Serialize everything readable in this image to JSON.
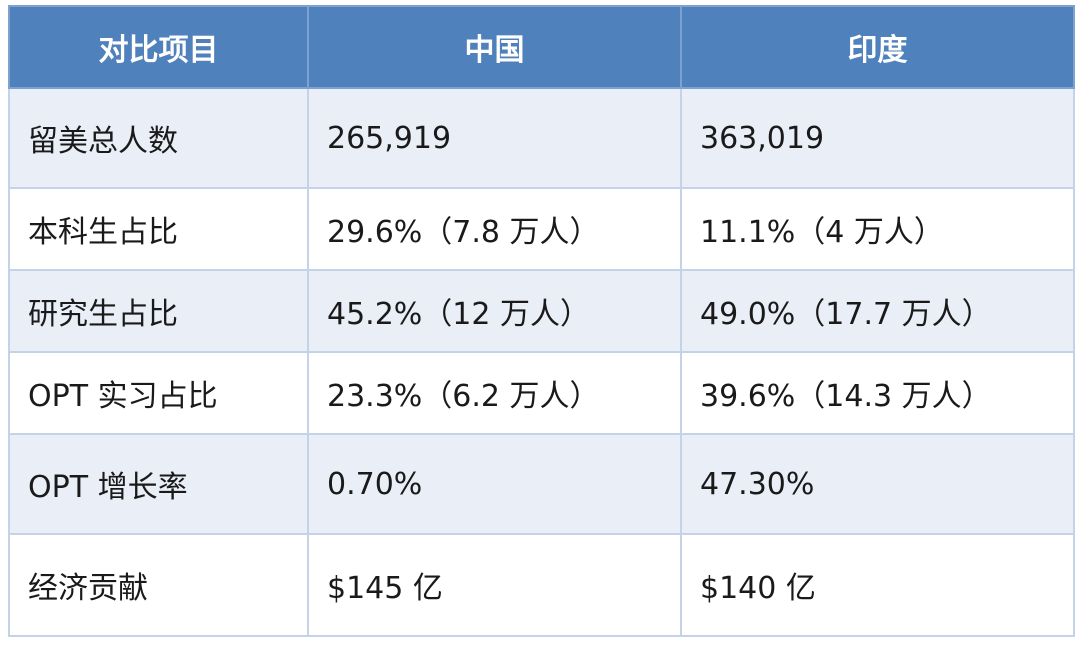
{
  "table": {
    "header": [
      "对比项目",
      "中国",
      "印度"
    ],
    "rows": [
      [
        "留美总人数",
        "265,919",
        "363,019"
      ],
      [
        "本科生占比",
        "29.6%（7.8 万人）",
        "11.1%（4 万人）"
      ],
      [
        "研究生占比",
        "45.2%（12 万人）",
        "49.0%（17.7 万人）"
      ],
      [
        "OPT 实习占比",
        "23.3%（6.2 万人）",
        "39.6%（14.3 万人）"
      ],
      [
        "OPT 增长率",
        "0.70%",
        "47.30%"
      ],
      [
        "经济贡献",
        "$145 亿",
        "$140 亿"
      ]
    ]
  }
}
